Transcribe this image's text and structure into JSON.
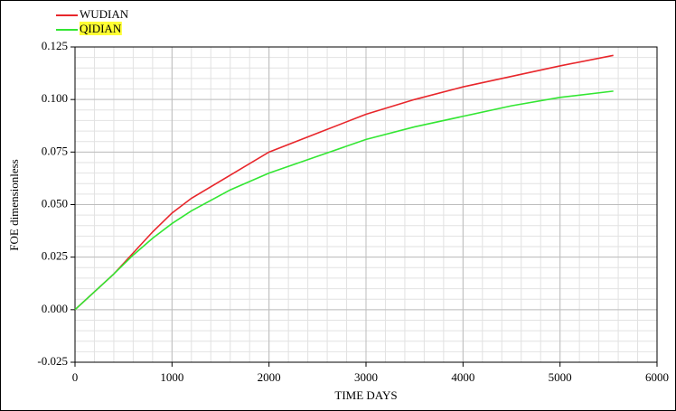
{
  "chart_data": {
    "type": "line",
    "x_label": "TIME DAYS",
    "y_label": "FOE dimensionless",
    "x": [
      0,
      400,
      600,
      800,
      1000,
      1200,
      1600,
      2000,
      2500,
      3000,
      3500,
      4000,
      4500,
      5000,
      5550
    ],
    "series": [
      {
        "name": "WUDIAN",
        "color": "#e8262b",
        "values": [
          0,
          0.017,
          0.027,
          0.037,
          0.046,
          0.053,
          0.064,
          0.075,
          0.084,
          0.093,
          0.1,
          0.106,
          0.111,
          0.116,
          0.121
        ]
      },
      {
        "name": "QIDIAN",
        "color": "#33e633",
        "values": [
          0,
          0.017,
          0.026,
          0.034,
          0.041,
          0.047,
          0.057,
          0.065,
          0.073,
          0.081,
          0.087,
          0.092,
          0.097,
          0.101,
          0.104
        ]
      }
    ],
    "xlim": [
      0,
      6000
    ],
    "xticks": [
      0,
      1000,
      2000,
      3000,
      4000,
      5000,
      6000
    ],
    "ylim": [
      -0.025,
      0.125
    ],
    "yticks": [
      {
        "value": -0.025,
        "label": "-0.025"
      },
      {
        "value": 0,
        "label": "0.000"
      },
      {
        "value": 0.025,
        "label": "0.025"
      },
      {
        "value": 0.05,
        "label": "0.050"
      },
      {
        "value": 0.075,
        "label": "0.075"
      },
      {
        "value": 0.1,
        "label": "0.100"
      },
      {
        "value": 0.125,
        "label": "0.125"
      }
    ],
    "grid": true,
    "minor_grid_step": [
      200,
      0.005
    ],
    "legend": "top-left"
  }
}
